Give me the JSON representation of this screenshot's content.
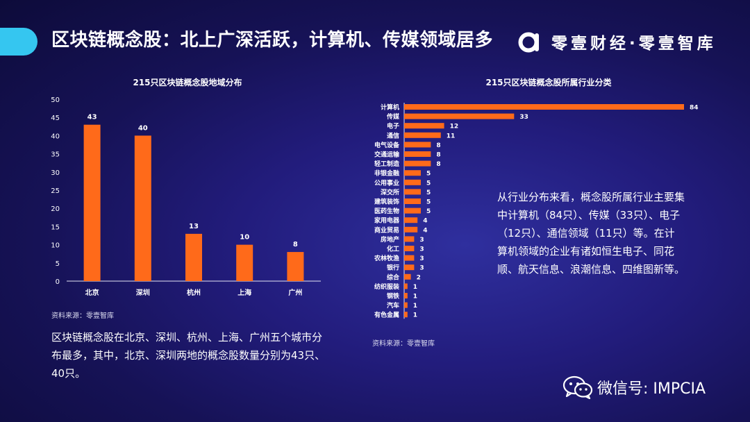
{
  "page": {
    "title": "区块链概念股：北上广深活跃，计算机、传媒领域居多",
    "brand": "零壹财经·零壹智库",
    "wechat": "微信号: IMPCIA"
  },
  "colors": {
    "bar": "#ff6a1a",
    "accent": "#35c6f0",
    "axis": "#e6e6f5",
    "text": "#ffffff"
  },
  "left": {
    "source": "资料来源：零壹智库",
    "description": "区块链概念股在北京、深圳、杭州、上海、广州五个城市分布最多，其中，北京、深圳两地的概念股数量分别为43只、40只。"
  },
  "right": {
    "source": "资料来源：零壹智库",
    "description": "从行业分布来看，概念股所属行业主要集中计算机（84只）、传媒（33只）、电子（12只）、通信领域（11只）等。在计算机领域的企业有诸如恒生电子、同花顺、航天信息、浪潮信息、四维图新等。"
  },
  "chart_data": [
    {
      "type": "bar",
      "title": "215只区块链概念股地域分布",
      "categories": [
        "北京",
        "深圳",
        "杭州",
        "上海",
        "广州"
      ],
      "values": [
        43,
        40,
        13,
        10,
        8
      ],
      "ylim": [
        0,
        50
      ],
      "yticks": [
        0,
        5,
        10,
        15,
        20,
        25,
        30,
        35,
        40,
        45,
        50
      ],
      "xlabel": "",
      "ylabel": "",
      "grid": false,
      "data_labels": true
    },
    {
      "type": "bar",
      "orientation": "horizontal",
      "title": "215只区块链概念股所属行业分类",
      "categories": [
        "计算机",
        "传媒",
        "电子",
        "通信",
        "电气设备",
        "交通运输",
        "轻工制造",
        "非银金融",
        "公用事业",
        "深交所",
        "建筑装饰",
        "医药生物",
        "家用电器",
        "商业贸易",
        "房地产",
        "化工",
        "农林牧渔",
        "银行",
        "综合",
        "纺织服装",
        "钢铁",
        "汽车",
        "有色金属"
      ],
      "values": [
        84,
        33,
        12,
        11,
        8,
        8,
        8,
        5,
        5,
        5,
        5,
        5,
        4,
        4,
        3,
        3,
        3,
        3,
        2,
        1,
        1,
        1,
        1
      ],
      "xlim": [
        0,
        84
      ],
      "xlabel": "",
      "ylabel": "",
      "grid": false,
      "data_labels": true
    }
  ]
}
